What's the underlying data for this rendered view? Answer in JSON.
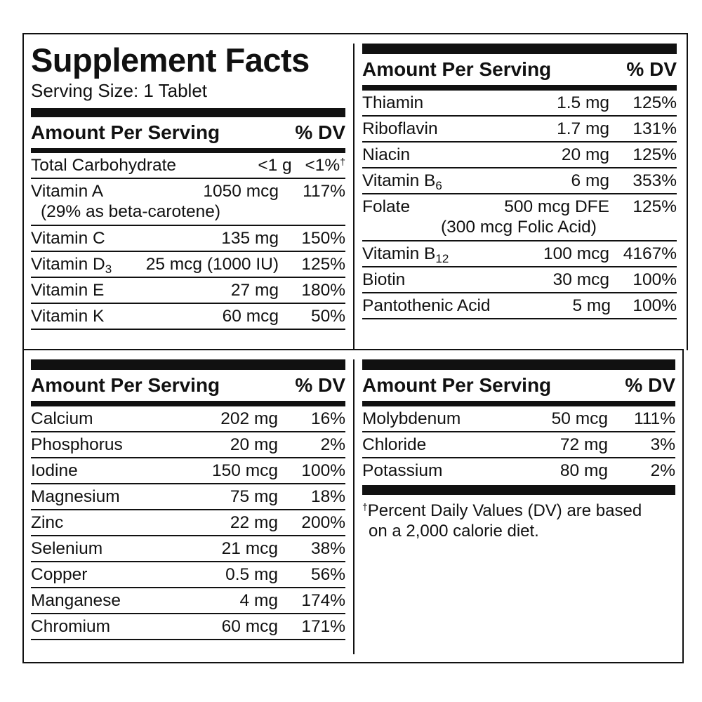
{
  "title": "Supplement Facts",
  "serving_size": "Serving Size: 1 Tablet",
  "header": {
    "amount_label": "Amount Per Serving",
    "dv_label": "% DV"
  },
  "panel1": [
    {
      "name": "Total Carbohydrate",
      "sub": "",
      "amount": "<1 g",
      "dv": "<1%",
      "dv_mark": "†",
      "detail": ""
    },
    {
      "name": "Vitamin A",
      "sub": "",
      "amount": "1050 mcg",
      "dv": "117%",
      "dv_mark": "",
      "detail": "(29% as beta-carotene)"
    },
    {
      "name": "Vitamin C",
      "sub": "",
      "amount": "135 mg",
      "dv": "150%",
      "dv_mark": "",
      "detail": ""
    },
    {
      "name": "Vitamin D",
      "sub": "3",
      "amount": "25 mcg (1000 IU)",
      "dv": "125%",
      "dv_mark": "",
      "detail": ""
    },
    {
      "name": "Vitamin E",
      "sub": "",
      "amount": "27 mg",
      "dv": "180%",
      "dv_mark": "",
      "detail": ""
    },
    {
      "name": "Vitamin K",
      "sub": "",
      "amount": "60 mcg",
      "dv": "50%",
      "dv_mark": "",
      "detail": ""
    }
  ],
  "panel2": [
    {
      "name": "Thiamin",
      "sub": "",
      "amount": "1.5 mg",
      "dv": "125%",
      "detail": ""
    },
    {
      "name": "Riboflavin",
      "sub": "",
      "amount": "1.7 mg",
      "dv": "131%",
      "detail": ""
    },
    {
      "name": "Niacin",
      "sub": "",
      "amount": "20 mg",
      "dv": "125%",
      "detail": ""
    },
    {
      "name": "Vitamin B",
      "sub": "6",
      "amount": "6 mg",
      "dv": "353%",
      "detail": ""
    },
    {
      "name": "Folate",
      "sub": "",
      "amount": "500 mcg DFE",
      "dv": "125%",
      "detail": "(300 mcg Folic Acid)"
    },
    {
      "name": "Vitamin B",
      "sub": "12",
      "amount": "100 mcg",
      "dv": "4167%",
      "detail": ""
    },
    {
      "name": "Biotin",
      "sub": "",
      "amount": "30 mcg",
      "dv": "100%",
      "detail": ""
    },
    {
      "name": "Pantothenic Acid",
      "sub": "",
      "amount": "5 mg",
      "dv": "100%",
      "detail": ""
    }
  ],
  "panel3": [
    {
      "name": "Calcium",
      "amount": "202 mg",
      "dv": "16%"
    },
    {
      "name": "Phosphorus",
      "amount": "20 mg",
      "dv": "2%"
    },
    {
      "name": "Iodine",
      "amount": "150 mcg",
      "dv": "100%"
    },
    {
      "name": "Magnesium",
      "amount": "75 mg",
      "dv": "18%"
    },
    {
      "name": "Zinc",
      "amount": "22 mg",
      "dv": "200%"
    },
    {
      "name": "Selenium",
      "amount": "21 mcg",
      "dv": "38%"
    },
    {
      "name": "Copper",
      "amount": "0.5 mg",
      "dv": "56%"
    },
    {
      "name": "Manganese",
      "amount": "4 mg",
      "dv": "174%"
    },
    {
      "name": "Chromium",
      "amount": "60 mcg",
      "dv": "171%"
    }
  ],
  "panel4": [
    {
      "name": "Molybdenum",
      "amount": "50 mcg",
      "dv": "111%"
    },
    {
      "name": "Chloride",
      "amount": "72 mg",
      "dv": "3%"
    },
    {
      "name": "Potassium",
      "amount": "80 mg",
      "dv": "2%"
    }
  ],
  "footnote": {
    "mark": "†",
    "line1": "Percent Daily Values (DV) are based",
    "line2": "on a 2,000 calorie diet."
  }
}
